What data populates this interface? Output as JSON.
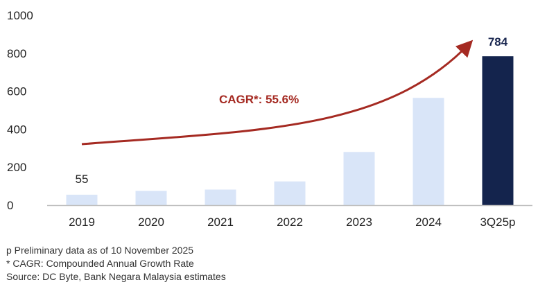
{
  "chart_data": {
    "type": "bar",
    "categories": [
      "2019",
      "2020",
      "2021",
      "2022",
      "2023",
      "2024",
      "3Q25p"
    ],
    "values": [
      55,
      75,
      82,
      125,
      280,
      565,
      784
    ],
    "ylim": [
      0,
      1000
    ],
    "yticks": [
      0,
      200,
      400,
      600,
      800,
      1000
    ],
    "data_labels": [
      {
        "index": 0,
        "text": "55",
        "style": "plain"
      },
      {
        "index": 6,
        "text": "784",
        "style": "bold"
      }
    ],
    "annotation": {
      "text": "CAGR*: 55.6%",
      "type": "curved-arrow"
    },
    "colors": {
      "bar": "#d9e5f8",
      "highlight": "#14244d",
      "arrow": "#a52a22",
      "axis": "#bfbfbf"
    },
    "highlight_index": 6,
    "grid": false
  },
  "footnotes": [
    "p Preliminary data as of 10 November 2025",
    "* CAGR: Compounded Annual Growth Rate",
    "Source: DC Byte, Bank Negara Malaysia estimates"
  ]
}
